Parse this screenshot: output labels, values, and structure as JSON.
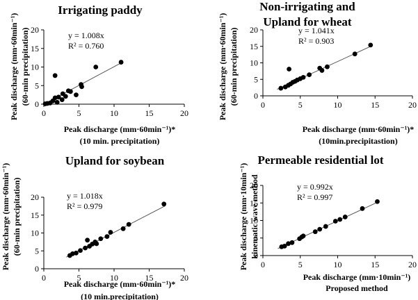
{
  "chart_data": [
    {
      "type": "scatter",
      "title": [
        "Irrigating paddy"
      ],
      "xlabel": [
        "Peak discharge (mm·60min⁻¹)*",
        "(10 min. precipitation)"
      ],
      "ylabel": [
        "Peak discharge (mm·60min⁻¹)",
        "(60-min precipitation)"
      ],
      "xlim": [
        0,
        20
      ],
      "ylim": [
        0,
        20
      ],
      "xticks": [
        0,
        5,
        10,
        15,
        20
      ],
      "yticks": [
        0,
        5,
        10,
        15,
        20
      ],
      "xtick_labels": [
        "0",
        "5",
        "10",
        "15",
        "20"
      ],
      "ytick_labels": [
        "0",
        "5",
        "10",
        "15",
        "20"
      ],
      "equation": "y = 1.008x",
      "r2": "R² = 0.760",
      "slope": 1.008,
      "points": [
        [
          0.2,
          0.1
        ],
        [
          0.5,
          0.2
        ],
        [
          0.9,
          0.3
        ],
        [
          1.3,
          0.9
        ],
        [
          1.6,
          7.7
        ],
        [
          1.6,
          1.7
        ],
        [
          1.9,
          0.5
        ],
        [
          2.1,
          1.9
        ],
        [
          2.6,
          1.2
        ],
        [
          2.7,
          2.8
        ],
        [
          3.1,
          2.1
        ],
        [
          3.5,
          3.6
        ],
        [
          3.8,
          3.4
        ],
        [
          4.6,
          2.5
        ],
        [
          5.3,
          5.3
        ],
        [
          5.4,
          4.7
        ],
        [
          7.4,
          10.0
        ],
        [
          11.0,
          11.3
        ]
      ]
    },
    {
      "type": "scatter",
      "title": [
        "Non-irrigating and",
        "Upland for wheat"
      ],
      "xlabel": [
        "Peak discharge (mm·60min⁻¹)*",
        "(10min.precipitastion)"
      ],
      "ylabel": [
        "Peak discharge (mm·60min⁻¹)",
        "(60-min precipitation)"
      ],
      "xlim": [
        0,
        20
      ],
      "ylim": [
        0,
        20
      ],
      "xticks": [
        0,
        5,
        10,
        15,
        20
      ],
      "yticks": [
        0,
        5,
        10,
        15,
        20
      ],
      "xtick_labels": [
        "0",
        "5",
        "10",
        "15",
        "20"
      ],
      "ytick_labels": [
        "0",
        "5",
        "10",
        "15",
        "20"
      ],
      "equation": "y = 1.041x",
      "r2": "R² = 0.903",
      "slope": 1.041,
      "points": [
        [
          2.4,
          2.3
        ],
        [
          3.0,
          2.7
        ],
        [
          3.4,
          3.2
        ],
        [
          3.5,
          8.1
        ],
        [
          3.7,
          3.6
        ],
        [
          4.0,
          4.1
        ],
        [
          4.3,
          4.4
        ],
        [
          4.6,
          4.8
        ],
        [
          5.0,
          5.2
        ],
        [
          5.4,
          5.6
        ],
        [
          6.2,
          6.4
        ],
        [
          7.6,
          8.4
        ],
        [
          7.9,
          7.7
        ],
        [
          8.6,
          8.8
        ],
        [
          12.3,
          12.7
        ],
        [
          14.4,
          15.4
        ]
      ]
    },
    {
      "type": "scatter",
      "title": [
        "Upland for soybean"
      ],
      "xlabel": [
        "Peak discharge (mm·60min⁻¹)*",
        "(10 min.precipitation)"
      ],
      "ylabel": [
        "Peak discharge (mm·60min⁻¹)",
        "(60-min precipitation)"
      ],
      "xlim": [
        0,
        20
      ],
      "ylim": [
        0,
        20
      ],
      "xticks": [
        0,
        5,
        10,
        15,
        20
      ],
      "yticks": [
        0,
        5,
        10,
        15,
        20
      ],
      "xtick_labels": [
        "0",
        "5",
        "10",
        "15",
        "20"
      ],
      "ytick_labels": [
        "0",
        "5",
        "10",
        "15",
        "20"
      ],
      "equation": "y = 1.018x",
      "r2": "R² = 0.979",
      "slope": 1.018,
      "points": [
        [
          3.7,
          3.7
        ],
        [
          4.1,
          4.2
        ],
        [
          4.6,
          4.4
        ],
        [
          5.2,
          5.1
        ],
        [
          5.9,
          5.8
        ],
        [
          6.2,
          8.0
        ],
        [
          6.5,
          6.3
        ],
        [
          6.9,
          6.9
        ],
        [
          7.3,
          7.5
        ],
        [
          7.5,
          7.0
        ],
        [
          8.1,
          8.4
        ],
        [
          9.0,
          9.0
        ],
        [
          9.5,
          10.2
        ],
        [
          11.3,
          11.2
        ],
        [
          12.1,
          12.4
        ],
        [
          17.1,
          18.1
        ]
      ]
    },
    {
      "type": "scatter",
      "title": [
        "Permeable residential lot"
      ],
      "xlabel": [
        "Peak discharge (mm·10min⁻¹)",
        "Proposed method"
      ],
      "ylabel": [
        "Peak discharge (mm·10min⁻¹)",
        "kinematic wave method"
      ],
      "xlim": [
        0,
        20
      ],
      "ylim": [
        0,
        20
      ],
      "xticks": [
        0,
        5,
        10,
        15,
        20
      ],
      "yticks": [
        0,
        5,
        10,
        15,
        20
      ],
      "xtick_labels": [
        "0",
        "5",
        "10",
        "15",
        "20"
      ],
      "ytick_labels": [
        "0",
        "5",
        "10",
        "15",
        "20"
      ],
      "equation": "y = 0.992x",
      "r2": "R² = 0.997",
      "slope": 0.992,
      "points": [
        [
          2.5,
          2.5
        ],
        [
          2.9,
          2.7
        ],
        [
          3.4,
          3.4
        ],
        [
          3.9,
          3.7
        ],
        [
          4.9,
          4.8
        ],
        [
          5.2,
          5.3
        ],
        [
          5.4,
          5.6
        ],
        [
          7.0,
          6.8
        ],
        [
          7.6,
          7.5
        ],
        [
          8.4,
          8.3
        ],
        [
          9.7,
          9.8
        ],
        [
          10.3,
          10.3
        ],
        [
          11.0,
          11.0
        ],
        [
          13.3,
          13.4
        ],
        [
          15.3,
          15.4
        ]
      ]
    }
  ]
}
